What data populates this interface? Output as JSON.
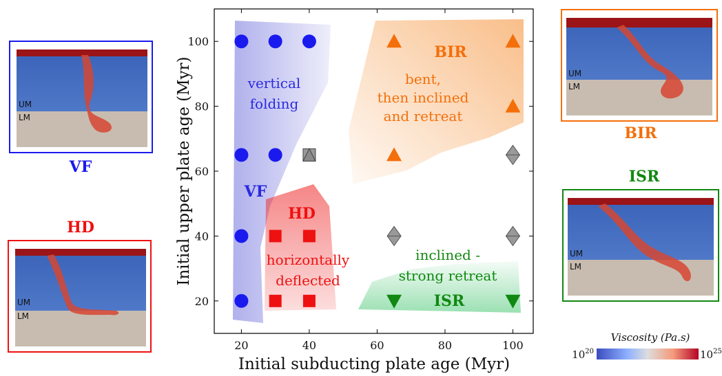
{
  "chart_data": {
    "type": "scatter",
    "title": "",
    "xlabel": "Initial subducting plate age (Myr)",
    "ylabel": "Initial upper plate age (Myr)",
    "xlim": [
      12,
      106
    ],
    "ylim": [
      10,
      110
    ],
    "xticks": [
      20,
      40,
      60,
      80,
      100
    ],
    "yticks": [
      20,
      40,
      60,
      80,
      100
    ],
    "grid": false,
    "series": [
      {
        "marker": "circle",
        "color": "#1a1aee",
        "points": [
          [
            20,
            100
          ],
          [
            30,
            100
          ],
          [
            40,
            100
          ],
          [
            20,
            65
          ],
          [
            30,
            65
          ],
          [
            20,
            40
          ],
          [
            20,
            20
          ]
        ]
      },
      {
        "marker": "square",
        "color": "#ee1111",
        "points": [
          [
            30,
            40
          ],
          [
            40,
            40
          ],
          [
            30,
            20
          ],
          [
            40,
            20
          ]
        ]
      },
      {
        "marker": "triangle-up",
        "color": "#f46f0a",
        "points": [
          [
            65,
            100
          ],
          [
            100,
            100
          ],
          [
            100,
            80
          ],
          [
            65,
            65
          ]
        ]
      },
      {
        "marker": "triangle-down",
        "color": "#118811",
        "points": [
          [
            65,
            20
          ],
          [
            100,
            20
          ]
        ]
      },
      {
        "marker": "diamond",
        "color": "#999999",
        "points": [
          [
            100,
            65
          ],
          [
            65,
            40
          ],
          [
            100,
            40
          ]
        ]
      },
      {
        "marker": "square-triangle",
        "color": "#999999",
        "points": [
          [
            40,
            65
          ]
        ]
      }
    ],
    "regions": [
      {
        "id": "vf",
        "color": "#6666dd",
        "code": "VF",
        "lines": [
          "vertical",
          "folding"
        ]
      },
      {
        "id": "hd",
        "color": "#ee2222",
        "code": "HD",
        "lines": [
          "horizontally",
          "deflected"
        ]
      },
      {
        "id": "bir",
        "color": "#f47a1a",
        "code": "BIR",
        "lines": [
          "bent,",
          "then inclined",
          "and retreat"
        ]
      },
      {
        "id": "isr",
        "color": "#22aa44",
        "code": "ISR",
        "lines": [
          "inclined -",
          "strong retreat"
        ]
      }
    ]
  },
  "panels": {
    "vf": {
      "label": "VF",
      "color": "#1a1aee",
      "um": "UM",
      "lm": "LM"
    },
    "hd": {
      "label": "HD",
      "color": "#ee1111",
      "um": "UM",
      "lm": "LM"
    },
    "bir": {
      "label": "BIR",
      "color": "#f46f0a",
      "um": "UM",
      "lm": "LM"
    },
    "isr": {
      "label": "ISR",
      "color": "#118811",
      "um": "UM",
      "lm": "LM"
    }
  },
  "colorbar": {
    "title": "Viscosity (Pa.s)",
    "min_base": "10",
    "min_exp": "20",
    "max_base": "10",
    "max_exp": "25"
  }
}
